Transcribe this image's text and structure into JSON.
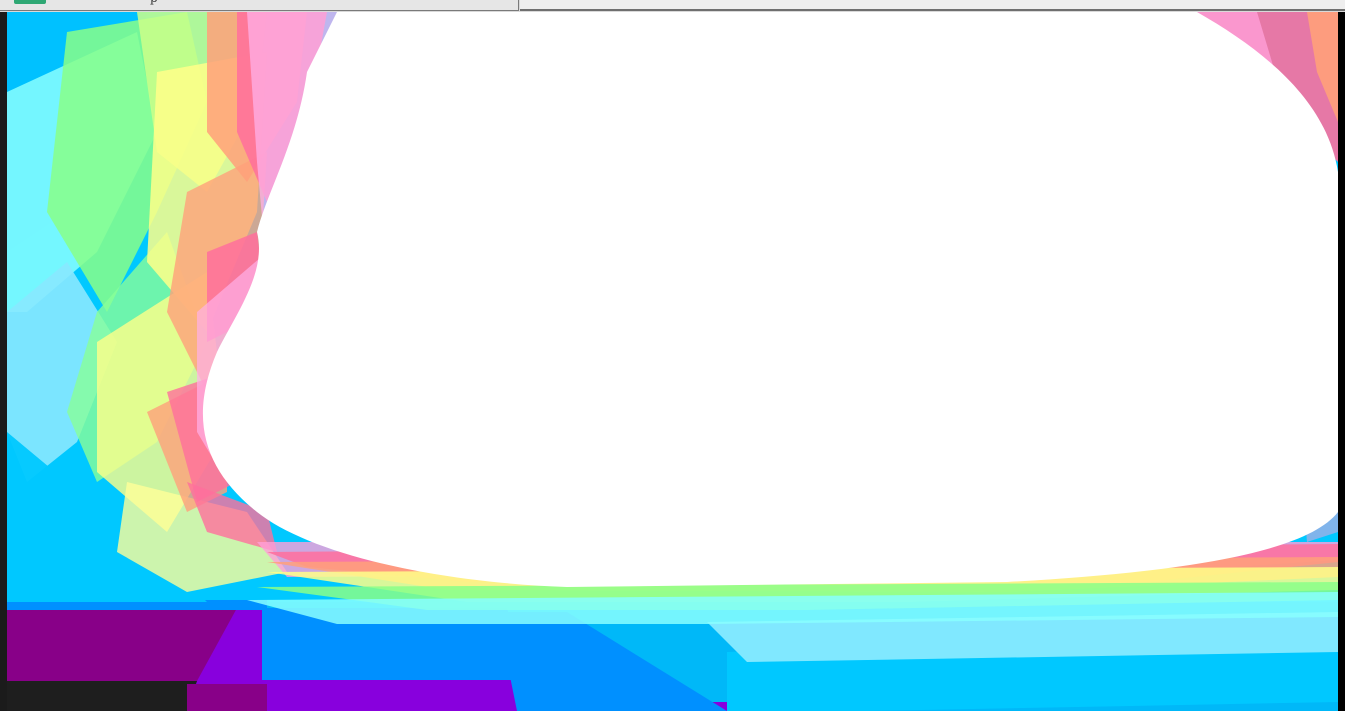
{
  "window": {
    "tab": {
      "label": "p",
      "icon": "app-icon"
    }
  },
  "canvas": {
    "description_colors": {
      "center": "#ffffff",
      "pink": "#ff6f9c",
      "light_pink": "#ff9fd8",
      "orange": "#ffa07a",
      "yellow": "#ffff88",
      "green": "#88ff88",
      "cyan": "#88ffff",
      "sky": "#00c8ff",
      "blue": "#0090ff",
      "violet": "#8800dd",
      "purple": "#880088",
      "dark": "#1e1e1e"
    }
  }
}
